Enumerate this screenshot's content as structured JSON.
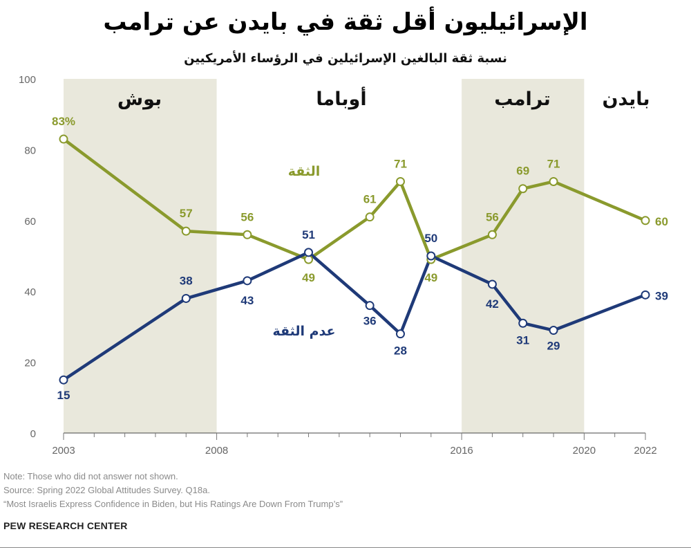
{
  "title": "الإسرائيليون أقل ثقة في بايدن عن ترامب",
  "subtitle": "نسبة ثقة البالغين الإسرائيلين في الرؤساء الأمريكيين",
  "footer": {
    "note": "Note: Those who did not answer not shown.",
    "source": "Source: Spring 2022 Global Attitudes Survey. Q18a.",
    "report": "“Most Israelis Express Confidence in Biden, but His Ratings Are Down From Trump’s”",
    "brand": "PEW RESEARCH CENTER"
  },
  "colors": {
    "confidence": "#8a9a2d",
    "no_confidence": "#1f3a78",
    "shade": "#e9e8dc"
  },
  "chart_data": {
    "type": "line",
    "ylim": [
      0,
      100
    ],
    "y_ticks": [
      0,
      20,
      40,
      60,
      80,
      100
    ],
    "xlim": [
      2003,
      2022
    ],
    "x_tick_labels": [
      2003,
      2008,
      2016,
      2020,
      2022
    ],
    "presidents": [
      {
        "name": "بوش",
        "start": 2003,
        "end": 2008,
        "shaded": true
      },
      {
        "name": "أوباما",
        "start": 2008,
        "end": 2016,
        "shaded": false
      },
      {
        "name": "ترامب",
        "start": 2016,
        "end": 2020,
        "shaded": true
      },
      {
        "name": "بايدن",
        "start": 2020,
        "end": 2022,
        "shaded": false
      }
    ],
    "series": [
      {
        "name": "الثقة",
        "x": [
          2003,
          2007,
          2009,
          2011,
          2013,
          2014,
          2015,
          2017,
          2018,
          2019,
          2022
        ],
        "y": [
          83,
          57,
          56,
          49,
          61,
          71,
          49,
          56,
          69,
          71,
          60
        ],
        "labels": [
          "83%",
          "57",
          "56",
          "49",
          "61",
          "71",
          "49",
          "56",
          "69",
          "71",
          "60"
        ]
      },
      {
        "name": "عدم الثقة",
        "x": [
          2003,
          2007,
          2009,
          2011,
          2013,
          2014,
          2015,
          2017,
          2018,
          2019,
          2022
        ],
        "y": [
          15,
          38,
          43,
          51,
          36,
          28,
          50,
          42,
          31,
          29,
          39
        ],
        "labels": [
          "15",
          "38",
          "43",
          "51",
          "36",
          "28",
          "50",
          "42",
          "31",
          "29",
          "39"
        ]
      }
    ]
  }
}
